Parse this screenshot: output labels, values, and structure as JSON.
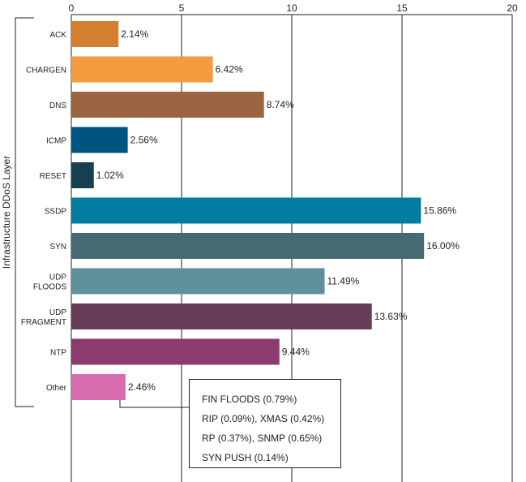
{
  "chart_data": {
    "type": "bar",
    "orientation": "horizontal",
    "ylabel": "Infrastructure DDoS Layer",
    "xlim": [
      0,
      20
    ],
    "xticks": [
      0,
      5,
      10,
      15,
      20
    ],
    "grid": true,
    "categories": [
      {
        "label": [
          "ACK"
        ],
        "value": 2.14,
        "display": "2.14%",
        "color": "#d47f30"
      },
      {
        "label": [
          "CHARGEN"
        ],
        "value": 6.42,
        "display": "6.42%",
        "color": "#f49a3f"
      },
      {
        "label": [
          "DNS"
        ],
        "value": 8.74,
        "display": "8.74%",
        "color": "#9a6540"
      },
      {
        "label": [
          "ICMP"
        ],
        "value": 2.56,
        "display": "2.56%",
        "color": "#005480"
      },
      {
        "label": [
          "RESET"
        ],
        "value": 1.02,
        "display": "1.02%",
        "color": "#163f4f"
      },
      {
        "label": [
          "SSDP"
        ],
        "value": 15.86,
        "display": "15.86%",
        "color": "#007ca0"
      },
      {
        "label": [
          "SYN"
        ],
        "value": 16.0,
        "display": "16.00%",
        "color": "#466a72"
      },
      {
        "label": [
          "UDP",
          "FLOODS"
        ],
        "value": 11.49,
        "display": "11.49%",
        "color": "#5f919c"
      },
      {
        "label": [
          "UDP",
          "FRAGMENT"
        ],
        "value": 13.63,
        "display": "13.63%",
        "color": "#673d58"
      },
      {
        "label": [
          "NTP"
        ],
        "value": 9.44,
        "display": "9.44%",
        "color": "#8c3b6d"
      },
      {
        "label": [
          "Other"
        ],
        "value": 2.46,
        "display": "2.46%",
        "color": "#d86eaf"
      }
    ],
    "annotation": {
      "attached_to": "Other",
      "lines": [
        "FIN FLOODS (0.79%)",
        "RIP (0.09%), XMAS (0.42%)",
        "RP (0.37%), SNMP (0.65%)",
        "SYN PUSH (0.14%)"
      ]
    }
  }
}
